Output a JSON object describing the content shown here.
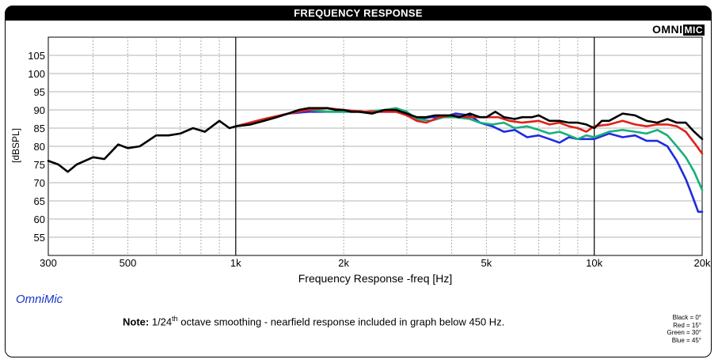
{
  "header": {
    "title": "FREQUENCY RESPONSE",
    "brand_main": "OMNI",
    "brand_badge": "MIC"
  },
  "footer": {
    "app_label": "OmniMic",
    "note_bold": "Note:",
    "note_prefix": "1/24",
    "note_sup": "th",
    "note_rest": " octave smoothing - nearfield response included in graph below 450 Hz.",
    "legend_lines": [
      "Black = 0°",
      "Red = 15°",
      "Green = 30°",
      "Blue = 45°"
    ]
  },
  "colors": {
    "black": "#000000",
    "red": "#e0201a",
    "green": "#17b07a",
    "blue": "#1f2be0",
    "grid": "#999999"
  },
  "chart_data": {
    "type": "line",
    "title": "FREQUENCY RESPONSE",
    "xlabel": "Frequency Response -freq [Hz]",
    "ylabel": "[dBSPL]",
    "xscale": "log",
    "xlim": [
      300,
      20000
    ],
    "ylim": [
      50,
      110
    ],
    "xticks": [
      300,
      500,
      1000,
      2000,
      5000,
      10000,
      20000
    ],
    "xtick_labels": [
      "300",
      "500",
      "1k",
      "2k",
      "5k",
      "10k",
      "20k"
    ],
    "yticks": [
      55,
      60,
      65,
      70,
      75,
      80,
      85,
      90,
      95,
      100,
      105
    ],
    "grid": true,
    "series": [
      {
        "name": "Black = 0°",
        "color": "#000000",
        "x": [
          300,
          320,
          340,
          360,
          400,
          430,
          470,
          500,
          540,
          600,
          650,
          700,
          760,
          820,
          900,
          960,
          1000,
          1100,
          1200,
          1300,
          1400,
          1500,
          1600,
          1700,
          1800,
          1900,
          2000,
          2100,
          2200,
          2400,
          2600,
          2800,
          3000,
          3200,
          3400,
          3600,
          3800,
          4000,
          4200,
          4500,
          4800,
          5000,
          5300,
          5600,
          6000,
          6300,
          6700,
          7000,
          7500,
          8000,
          8500,
          9000,
          9500,
          10000,
          10500,
          11000,
          12000,
          13000,
          14000,
          15000,
          16000,
          17000,
          18000,
          19000,
          20000
        ],
        "y": [
          76,
          75,
          73,
          75,
          77,
          76.5,
          80.5,
          79.5,
          80,
          83,
          83,
          83.5,
          85,
          84,
          87,
          85,
          85.5,
          86,
          87,
          88,
          89,
          90,
          90.5,
          90.5,
          90.5,
          90,
          90,
          89.5,
          89.5,
          89,
          90,
          90,
          89,
          88,
          88,
          88.5,
          88.5,
          88.5,
          88,
          89,
          88,
          88,
          89.5,
          88,
          87.5,
          88,
          88,
          88.5,
          87,
          87,
          86.5,
          86.5,
          86,
          85,
          87,
          87,
          89,
          88.5,
          87,
          86.5,
          87.5,
          86.5,
          86.5,
          84,
          82
        ]
      },
      {
        "name": "Red = 15°",
        "color": "#e0201a",
        "x": [
          1000,
          1200,
          1400,
          1600,
          1800,
          2000,
          2300,
          2600,
          2800,
          3000,
          3200,
          3400,
          3700,
          4000,
          4400,
          4800,
          5000,
          5400,
          5800,
          6300,
          7000,
          7500,
          8000,
          8500,
          9000,
          9500,
          10000,
          11000,
          12000,
          13000,
          14000,
          15000,
          16000,
          17000,
          18000,
          19000,
          20000
        ],
        "y": [
          85.5,
          87.5,
          89,
          90,
          90.5,
          90,
          89.5,
          89.5,
          89.5,
          88.5,
          87,
          86.5,
          88,
          88.5,
          88,
          88,
          88,
          88,
          87,
          86.5,
          87,
          86,
          86.5,
          85.5,
          85,
          84,
          85.5,
          86,
          87,
          86,
          85.5,
          86,
          86,
          85.5,
          84,
          81,
          78
        ]
      },
      {
        "name": "Green = 30°",
        "color": "#17b07a",
        "x": [
          1000,
          1200,
          1400,
          1600,
          1800,
          2000,
          2300,
          2600,
          2800,
          3000,
          3200,
          3500,
          3800,
          4100,
          4500,
          4800,
          5200,
          5600,
          6000,
          6500,
          7000,
          7500,
          8000,
          8500,
          9000,
          9500,
          10000,
          11000,
          12000,
          13000,
          14000,
          15000,
          16000,
          17000,
          18000,
          19000,
          20000
        ],
        "y": [
          85.5,
          87.5,
          89,
          90,
          89.5,
          89.5,
          89.5,
          90,
          90.5,
          89.5,
          87.5,
          87,
          88,
          88,
          87.5,
          86.5,
          86,
          86.5,
          85,
          85.5,
          84.5,
          83.5,
          84,
          83,
          82,
          83,
          82.5,
          84,
          84.5,
          84,
          83.5,
          84.5,
          83,
          80,
          77,
          73,
          68
        ]
      },
      {
        "name": "Blue = 45°",
        "color": "#1f2be0",
        "x": [
          1000,
          1200,
          1400,
          1600,
          1800,
          2000,
          2300,
          2600,
          2800,
          3000,
          3200,
          3500,
          3800,
          4100,
          4500,
          4800,
          5200,
          5600,
          6000,
          6500,
          7000,
          7500,
          8000,
          8500,
          9000,
          9500,
          10000,
          11000,
          12000,
          13000,
          14000,
          15000,
          16000,
          17000,
          18000,
          18500,
          19000,
          19500,
          20000
        ],
        "y": [
          85.5,
          87.5,
          89,
          89.5,
          89.5,
          89.5,
          89.5,
          89.5,
          89.5,
          89,
          87.5,
          88,
          88,
          89,
          88.5,
          86.5,
          85.5,
          84,
          84.5,
          82.5,
          83,
          82,
          81,
          82.5,
          82,
          82,
          82,
          83.5,
          82.5,
          83,
          81.5,
          81.5,
          80,
          76,
          71,
          68,
          65,
          62,
          62
        ]
      }
    ]
  }
}
